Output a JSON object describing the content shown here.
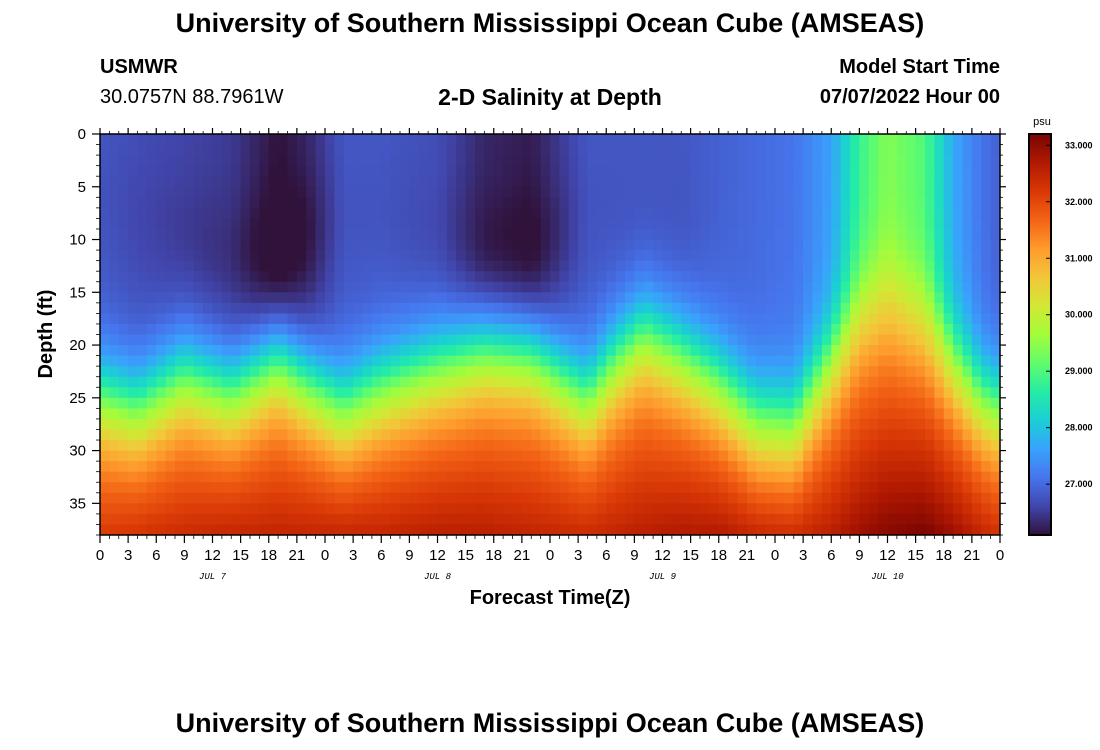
{
  "header": {
    "title": "University of Southern Mississippi Ocean Cube (AMSEAS)",
    "station": "USMWR",
    "coords": "30.0757N  88.7961W",
    "subtitle": "2-D Salinity at Depth",
    "model_start_label": "Model Start Time",
    "model_start_value": "07/07/2022 Hour 00"
  },
  "footer": {
    "title": "University of Southern Mississippi Ocean Cube (AMSEAS)"
  },
  "colors": {
    "colormap": [
      "#30123b",
      "#4145ab",
      "#4675ed",
      "#39a2fc",
      "#1bcfd4",
      "#24eca6",
      "#61fc6c",
      "#a4fc3b",
      "#d1e834",
      "#f3c63a",
      "#fe9b2d",
      "#f36315",
      "#d93806",
      "#b11901",
      "#7a0402"
    ]
  },
  "chart_data": {
    "type": "heatmap",
    "variable": "Salinity",
    "units": "psu",
    "xlabel": "Forecast Time(Z)",
    "ylabel": "Depth (ft)",
    "x_range_hours": [
      0,
      96
    ],
    "y_range_ft": [
      0,
      38
    ],
    "x_ticks_hours": [
      0,
      3,
      6,
      9,
      12,
      15,
      18,
      21,
      24,
      27,
      30,
      33,
      36,
      39,
      42,
      45,
      48,
      51,
      54,
      57,
      60,
      63,
      66,
      69,
      72,
      75,
      78,
      81,
      84,
      87,
      90,
      93,
      96
    ],
    "x_tick_labels": [
      "0",
      "3",
      "6",
      "9",
      "12",
      "15",
      "18",
      "21",
      "0",
      "3",
      "6",
      "9",
      "12",
      "15",
      "18",
      "21",
      "0",
      "3",
      "6",
      "9",
      "12",
      "15",
      "18",
      "21",
      "0",
      "3",
      "6",
      "9",
      "12",
      "15",
      "18",
      "21",
      "0"
    ],
    "y_ticks": [
      0,
      5,
      10,
      15,
      20,
      25,
      30,
      35
    ],
    "y_tick_labels": [
      "0",
      "5",
      "10",
      "15",
      "20",
      "25",
      "30",
      "35"
    ],
    "day_labels": [
      {
        "label": "JUL 7",
        "hour": 12
      },
      {
        "label": "JUL 8",
        "hour": 36
      },
      {
        "label": "JUL 9",
        "hour": 60
      },
      {
        "label": "JUL 10",
        "hour": 84
      }
    ],
    "colorbar": {
      "min": 26.1,
      "max": 33.2,
      "ticks": [
        27,
        28,
        29,
        30,
        31,
        32,
        33
      ],
      "tick_labels": [
        "27.000",
        "28.000",
        "29.000",
        "30.000",
        "31.000",
        "32.000",
        "33.000"
      ]
    },
    "profile_control_points": [
      {
        "hour": 0,
        "surface": 26.8,
        "halocline_ft": 24.5,
        "bottom": 32.2,
        "minimum_ft": 6
      },
      {
        "hour": 4,
        "surface": 26.7,
        "halocline_ft": 25.5,
        "bottom": 32.3,
        "minimum_ft": 8
      },
      {
        "hour": 9,
        "surface": 26.6,
        "halocline_ft": 22.5,
        "bottom": 32.4,
        "minimum_ft": 10
      },
      {
        "hour": 14,
        "surface": 26.5,
        "halocline_ft": 24.0,
        "bottom": 32.5,
        "minimum_ft": 12
      },
      {
        "hour": 19,
        "surface": 26.1,
        "halocline_ft": 21.0,
        "bottom": 32.5,
        "minimum_ft": 12
      },
      {
        "hour": 22,
        "surface": 26.3,
        "halocline_ft": 23.0,
        "bottom": 32.5,
        "minimum_ft": 10
      },
      {
        "hour": 26,
        "surface": 26.8,
        "halocline_ft": 25.5,
        "bottom": 32.5,
        "minimum_ft": 8
      },
      {
        "hour": 30,
        "surface": 26.8,
        "halocline_ft": 23.5,
        "bottom": 32.5,
        "minimum_ft": 8
      },
      {
        "hour": 36,
        "surface": 26.7,
        "halocline_ft": 21.5,
        "bottom": 32.6,
        "minimum_ft": 10
      },
      {
        "hour": 41,
        "surface": 26.3,
        "halocline_ft": 20.0,
        "bottom": 32.6,
        "minimum_ft": 12
      },
      {
        "hour": 46,
        "surface": 26.2,
        "halocline_ft": 20.5,
        "bottom": 32.5,
        "minimum_ft": 12
      },
      {
        "hour": 52,
        "surface": 26.8,
        "halocline_ft": 24.5,
        "bottom": 32.4,
        "minimum_ft": 8
      },
      {
        "hour": 55,
        "surface": 26.8,
        "halocline_ft": 21.0,
        "bottom": 32.5,
        "minimum_ft": 8
      },
      {
        "hour": 58,
        "surface": 26.8,
        "halocline_ft": 18.5,
        "bottom": 32.6,
        "minimum_ft": 8
      },
      {
        "hour": 62,
        "surface": 26.8,
        "halocline_ft": 20.5,
        "bottom": 32.7,
        "minimum_ft": 8
      },
      {
        "hour": 66,
        "surface": 26.9,
        "halocline_ft": 23.0,
        "bottom": 32.7,
        "minimum_ft": 8
      },
      {
        "hour": 70,
        "surface": 27.0,
        "halocline_ft": 26.5,
        "bottom": 32.5,
        "minimum_ft": 8
      },
      {
        "hour": 74,
        "surface": 27.1,
        "halocline_ft": 27.0,
        "bottom": 32.4,
        "minimum_ft": 8
      },
      {
        "hour": 78,
        "surface": 27.6,
        "halocline_ft": 21.0,
        "bottom": 32.6,
        "minimum_ft": 8
      },
      {
        "hour": 81,
        "surface": 28.8,
        "halocline_ft": 16.5,
        "bottom": 32.9,
        "minimum_ft": 8
      },
      {
        "hour": 84,
        "surface": 29.4,
        "halocline_ft": 15.0,
        "bottom": 33.1,
        "minimum_ft": 8
      },
      {
        "hour": 88,
        "surface": 29.0,
        "halocline_ft": 17.0,
        "bottom": 33.2,
        "minimum_ft": 8
      },
      {
        "hour": 91,
        "surface": 27.7,
        "halocline_ft": 21.0,
        "bottom": 32.9,
        "minimum_ft": 8
      },
      {
        "hour": 94,
        "surface": 27.1,
        "halocline_ft": 24.5,
        "bottom": 32.5,
        "minimum_ft": 8
      },
      {
        "hour": 96,
        "surface": 26.9,
        "halocline_ft": 25.5,
        "bottom": 32.3,
        "minimum_ft": 8
      }
    ]
  }
}
